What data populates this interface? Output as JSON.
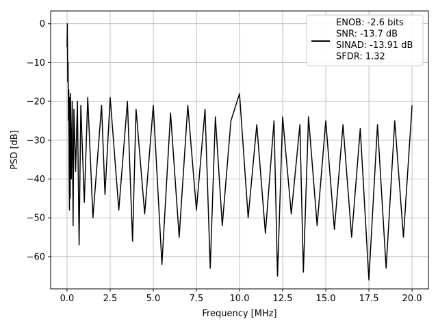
{
  "chart_data": {
    "type": "line",
    "title": "",
    "xlabel": "Frequency [MHz]",
    "ylabel": "PSD [dB]",
    "xlim": [
      -0.95,
      20.95
    ],
    "ylim": [
      -68.3,
      3.3
    ],
    "x_ticks": [
      0.0,
      2.5,
      5.0,
      7.5,
      10.0,
      12.5,
      15.0,
      17.5,
      20.0
    ],
    "x_tick_labels": [
      "0.0",
      "2.5",
      "5.0",
      "7.5",
      "10.0",
      "12.5",
      "15.0",
      "17.5",
      "20.0"
    ],
    "y_ticks": [
      0,
      -10,
      -20,
      -30,
      -40,
      -50,
      -60
    ],
    "y_tick_labels": [
      "0",
      "−10",
      "−20",
      "−30",
      "−40",
      "−50",
      "−60"
    ],
    "grid": true,
    "legend_position": "top-right",
    "series": [
      {
        "name": "ENOB: -2.6 bits\nSNR: -13.7 dB\nSINAD: -13.91 dB\nSFDR: 1.32",
        "color": "#000000",
        "x": [
          0.0,
          0.02,
          0.04,
          0.06,
          0.08,
          0.1,
          0.12,
          0.14,
          0.16,
          0.18,
          0.2,
          0.25,
          0.3,
          0.35,
          0.4,
          0.5,
          0.6,
          0.7,
          0.8,
          1.0,
          1.2,
          1.5,
          2.0,
          2.2,
          2.5,
          3.0,
          3.5,
          3.8,
          4.0,
          4.5,
          5.0,
          5.5,
          6.0,
          6.5,
          7.0,
          7.5,
          8.0,
          8.3,
          8.6,
          9.0,
          9.5,
          10.0,
          10.5,
          11.0,
          11.5,
          12.0,
          12.2,
          12.5,
          13.0,
          13.5,
          13.7,
          14.0,
          14.5,
          15.0,
          15.5,
          16.0,
          16.5,
          17.0,
          17.5,
          18.0,
          18.5,
          19.0,
          19.5,
          20.0
        ],
        "y": [
          -6,
          0,
          -15,
          -10,
          -25,
          -17,
          -38,
          -48,
          -19,
          -45,
          -18,
          -40,
          -20,
          -52,
          -22,
          -38,
          -20,
          -57,
          -21,
          -46,
          -19,
          -50,
          -21,
          -44,
          -19,
          -48,
          -20,
          -56,
          -22,
          -49,
          -21,
          -62,
          -23,
          -55,
          -21,
          -48,
          -22,
          -63,
          -24,
          -52,
          -25,
          -18,
          -50,
          -26,
          -54,
          -25,
          -65,
          -24,
          -49,
          -26,
          -64,
          -24,
          -52,
          -25,
          -53,
          -26,
          -55,
          -27,
          -66,
          -26,
          -63,
          -25,
          -55,
          -21
        ]
      }
    ]
  }
}
